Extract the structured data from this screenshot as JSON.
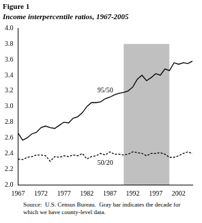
{
  "chart_data": {
    "type": "line",
    "title": "Figure 1",
    "subtitle": "Income interpercentile ratios, 1967-2005",
    "source": "Source:  U.S. Census Bureau.  Gray bar indicates the decade for which we have county-level data.",
    "x": [
      1967,
      1968,
      1969,
      1970,
      1971,
      1972,
      1973,
      1974,
      1975,
      1976,
      1977,
      1978,
      1979,
      1980,
      1981,
      1982,
      1983,
      1984,
      1985,
      1986,
      1987,
      1988,
      1989,
      1990,
      1991,
      1992,
      1993,
      1994,
      1995,
      1996,
      1997,
      1998,
      1999,
      2000,
      2001,
      2002,
      2003,
      2004,
      2005
    ],
    "series": [
      {
        "name": "95/50",
        "color": "#000000",
        "line_style": "solid",
        "values": [
          2.66,
          2.57,
          2.6,
          2.65,
          2.67,
          2.73,
          2.75,
          2.73,
          2.72,
          2.76,
          2.8,
          2.79,
          2.85,
          2.87,
          2.92,
          3.0,
          3.05,
          3.05,
          3.06,
          3.1,
          3.12,
          3.15,
          3.17,
          3.18,
          3.2,
          3.25,
          3.35,
          3.4,
          3.33,
          3.37,
          3.42,
          3.4,
          3.48,
          3.46,
          3.56,
          3.54,
          3.56,
          3.55,
          3.58
        ]
      },
      {
        "name": "50/20",
        "color": "#000000",
        "line_style": "dashed",
        "values": [
          2.33,
          2.32,
          2.35,
          2.36,
          2.38,
          2.38,
          2.37,
          2.3,
          2.36,
          2.35,
          2.37,
          2.36,
          2.38,
          2.37,
          2.4,
          2.33,
          2.36,
          2.37,
          2.4,
          2.38,
          2.42,
          2.39,
          2.39,
          2.38,
          2.39,
          2.42,
          2.41,
          2.4,
          2.37,
          2.4,
          2.4,
          2.41,
          2.39,
          2.35,
          2.35,
          2.37,
          2.4,
          2.42,
          2.4
        ]
      }
    ],
    "xlim": [
      1967,
      2005
    ],
    "xticks": [
      1967,
      1972,
      1977,
      1982,
      1987,
      1992,
      1997,
      2002
    ],
    "ylim": [
      2.0,
      4.0
    ],
    "yticks": [
      {
        "value": 2,
        "label": "2.0"
      },
      2.2,
      2.4,
      2.6,
      2.8,
      {
        "value": 3,
        "label": "3.0"
      },
      3.2,
      3.4,
      3.6,
      3.8,
      {
        "value": 4,
        "label": "4.0"
      }
    ],
    "grid": false,
    "shaded_region": {
      "x": [
        1990,
        2000
      ],
      "ymax": 3.8,
      "color": "#c0c0c0"
    }
  }
}
